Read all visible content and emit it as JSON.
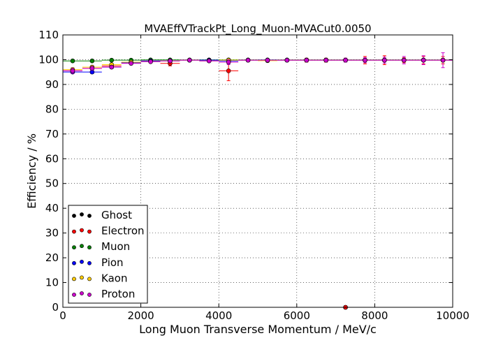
{
  "chart_data": {
    "type": "scatter",
    "title": "MVAEffVTrackPt_Long_Muon-MVACut0.0050",
    "xlabel": "Long Muon Transverse Momentum / MeV/c",
    "ylabel": "Efficiency / %",
    "xlim": [
      0,
      10000
    ],
    "ylim": [
      0,
      110
    ],
    "xticks": [
      0,
      2000,
      4000,
      6000,
      8000,
      10000
    ],
    "yticks": [
      0,
      10,
      20,
      30,
      40,
      50,
      60,
      70,
      80,
      90,
      100,
      110
    ],
    "grid": true,
    "legend_position": "lower-left",
    "bin_half_width": 250,
    "series": [
      {
        "name": "Ghost",
        "color": "#000000",
        "points": [
          {
            "x": 7250,
            "y": 0,
            "yerr": 0
          }
        ]
      },
      {
        "name": "Electron",
        "color": "#ff0000",
        "points": [
          {
            "x": 250,
            "y": 95.5,
            "yerr": 1.0
          },
          {
            "x": 750,
            "y": 96.5,
            "yerr": 1.0
          },
          {
            "x": 1250,
            "y": 97.5,
            "yerr": 0.8
          },
          {
            "x": 1750,
            "y": 98.8,
            "yerr": 0.6
          },
          {
            "x": 2250,
            "y": 99.5,
            "yerr": 0.5
          },
          {
            "x": 2750,
            "y": 98.5,
            "yerr": 1.0
          },
          {
            "x": 3250,
            "y": 99.8,
            "yerr": 0.4
          },
          {
            "x": 3750,
            "y": 99.8,
            "yerr": 0.4
          },
          {
            "x": 4250,
            "y": 95.5,
            "yerr": 4.0
          },
          {
            "x": 4750,
            "y": 99.8,
            "yerr": 0.5
          },
          {
            "x": 5250,
            "y": 99.8,
            "yerr": 0.5
          },
          {
            "x": 5750,
            "y": 99.8,
            "yerr": 0.5
          },
          {
            "x": 6250,
            "y": 99.8,
            "yerr": 0.8
          },
          {
            "x": 6750,
            "y": 99.8,
            "yerr": 0.8
          },
          {
            "x": 7250,
            "y": 99.8,
            "yerr": 0.8
          },
          {
            "x": 7750,
            "y": 99.8,
            "yerr": 1.5
          },
          {
            "x": 8250,
            "y": 99.8,
            "yerr": 1.8
          },
          {
            "x": 8750,
            "y": 99.8,
            "yerr": 1.0
          },
          {
            "x": 9250,
            "y": 99.8,
            "yerr": 1.5
          },
          {
            "x": 9750,
            "y": 99.8,
            "yerr": 1.5
          },
          {
            "x": 7250,
            "y": 0,
            "yerr": 0
          }
        ]
      },
      {
        "name": "Muon",
        "color": "#007f00",
        "points": [
          {
            "x": 250,
            "y": 99.5,
            "yerr": 0.3
          },
          {
            "x": 750,
            "y": 99.5,
            "yerr": 0.3
          },
          {
            "x": 1250,
            "y": 99.8,
            "yerr": 0.2
          },
          {
            "x": 1750,
            "y": 99.8,
            "yerr": 0.2
          },
          {
            "x": 2250,
            "y": 99.9,
            "yerr": 0.2
          },
          {
            "x": 2750,
            "y": 99.9,
            "yerr": 0.2
          },
          {
            "x": 3250,
            "y": 99.9,
            "yerr": 0.2
          },
          {
            "x": 3750,
            "y": 99.9,
            "yerr": 0.2
          },
          {
            "x": 4250,
            "y": 99.9,
            "yerr": 0.2
          },
          {
            "x": 4750,
            "y": 99.9,
            "yerr": 0.2
          },
          {
            "x": 5250,
            "y": 99.9,
            "yerr": 0.2
          },
          {
            "x": 5750,
            "y": 99.9,
            "yerr": 0.2
          },
          {
            "x": 6250,
            "y": 99.9,
            "yerr": 0.2
          },
          {
            "x": 6750,
            "y": 99.9,
            "yerr": 0.2
          },
          {
            "x": 7250,
            "y": 99.9,
            "yerr": 0.2
          },
          {
            "x": 7750,
            "y": 99.9,
            "yerr": 0.2
          },
          {
            "x": 8250,
            "y": 99.9,
            "yerr": 0.2
          },
          {
            "x": 8750,
            "y": 99.9,
            "yerr": 0.2
          },
          {
            "x": 9250,
            "y": 99.9,
            "yerr": 0.2
          },
          {
            "x": 9750,
            "y": 99.9,
            "yerr": 0.2
          }
        ]
      },
      {
        "name": "Pion",
        "color": "#0000ff",
        "points": [
          {
            "x": 250,
            "y": 95.0,
            "yerr": 0.6
          },
          {
            "x": 750,
            "y": 95.0,
            "yerr": 0.6
          },
          {
            "x": 1250,
            "y": 97.0,
            "yerr": 0.5
          },
          {
            "x": 1750,
            "y": 98.8,
            "yerr": 0.4
          },
          {
            "x": 2250,
            "y": 99.5,
            "yerr": 0.3
          },
          {
            "x": 2750,
            "y": 99.5,
            "yerr": 0.3
          },
          {
            "x": 3250,
            "y": 99.8,
            "yerr": 0.3
          },
          {
            "x": 3750,
            "y": 99.8,
            "yerr": 0.3
          },
          {
            "x": 4250,
            "y": 99.5,
            "yerr": 0.5
          },
          {
            "x": 4750,
            "y": 99.8,
            "yerr": 0.3
          },
          {
            "x": 5250,
            "y": 99.8,
            "yerr": 0.3
          },
          {
            "x": 5750,
            "y": 99.8,
            "yerr": 0.3
          },
          {
            "x": 6250,
            "y": 99.8,
            "yerr": 0.4
          },
          {
            "x": 6750,
            "y": 99.8,
            "yerr": 0.4
          },
          {
            "x": 7250,
            "y": 99.8,
            "yerr": 0.4
          },
          {
            "x": 7750,
            "y": 99.8,
            "yerr": 0.5
          },
          {
            "x": 8250,
            "y": 99.8,
            "yerr": 0.5
          },
          {
            "x": 8750,
            "y": 99.8,
            "yerr": 0.5
          },
          {
            "x": 9250,
            "y": 99.8,
            "yerr": 0.5
          },
          {
            "x": 9750,
            "y": 99.8,
            "yerr": 0.5
          }
        ]
      },
      {
        "name": "Kaon",
        "color": "#ffcc00",
        "points": [
          {
            "x": 250,
            "y": 96.0,
            "yerr": 0.8
          },
          {
            "x": 750,
            "y": 97.0,
            "yerr": 0.6
          },
          {
            "x": 1250,
            "y": 98.0,
            "yerr": 0.5
          },
          {
            "x": 1750,
            "y": 99.0,
            "yerr": 0.4
          },
          {
            "x": 2250,
            "y": 99.2,
            "yerr": 0.4
          },
          {
            "x": 2750,
            "y": 99.5,
            "yerr": 0.4
          },
          {
            "x": 3250,
            "y": 99.8,
            "yerr": 0.3
          },
          {
            "x": 3750,
            "y": 99.5,
            "yerr": 0.4
          },
          {
            "x": 4250,
            "y": 99.8,
            "yerr": 0.4
          },
          {
            "x": 4750,
            "y": 99.8,
            "yerr": 0.4
          },
          {
            "x": 5250,
            "y": 99.6,
            "yerr": 0.4
          },
          {
            "x": 5750,
            "y": 99.8,
            "yerr": 0.4
          },
          {
            "x": 6250,
            "y": 99.8,
            "yerr": 0.4
          },
          {
            "x": 6750,
            "y": 99.8,
            "yerr": 0.5
          },
          {
            "x": 7250,
            "y": 99.8,
            "yerr": 0.5
          },
          {
            "x": 7750,
            "y": 99.8,
            "yerr": 0.6
          },
          {
            "x": 8250,
            "y": 99.8,
            "yerr": 0.6
          },
          {
            "x": 8750,
            "y": 99.8,
            "yerr": 0.6
          },
          {
            "x": 9250,
            "y": 99.8,
            "yerr": 0.6
          },
          {
            "x": 9750,
            "y": 99.8,
            "yerr": 0.8
          }
        ]
      },
      {
        "name": "Proton",
        "color": "#cc00cc",
        "points": [
          {
            "x": 250,
            "y": 95.5,
            "yerr": 1.0
          },
          {
            "x": 750,
            "y": 96.5,
            "yerr": 0.8
          },
          {
            "x": 1250,
            "y": 97.0,
            "yerr": 0.6
          },
          {
            "x": 1750,
            "y": 98.5,
            "yerr": 0.5
          },
          {
            "x": 2250,
            "y": 99.2,
            "yerr": 0.5
          },
          {
            "x": 2750,
            "y": 99.5,
            "yerr": 0.5
          },
          {
            "x": 3250,
            "y": 99.8,
            "yerr": 0.4
          },
          {
            "x": 3750,
            "y": 99.5,
            "yerr": 0.5
          },
          {
            "x": 4250,
            "y": 99.0,
            "yerr": 1.0
          },
          {
            "x": 4750,
            "y": 99.8,
            "yerr": 0.5
          },
          {
            "x": 5250,
            "y": 99.8,
            "yerr": 0.5
          },
          {
            "x": 5750,
            "y": 99.8,
            "yerr": 0.5
          },
          {
            "x": 6250,
            "y": 99.8,
            "yerr": 0.6
          },
          {
            "x": 6750,
            "y": 99.8,
            "yerr": 0.6
          },
          {
            "x": 7250,
            "y": 99.8,
            "yerr": 0.8
          },
          {
            "x": 7750,
            "y": 99.8,
            "yerr": 1.0
          },
          {
            "x": 8250,
            "y": 99.8,
            "yerr": 1.2
          },
          {
            "x": 8750,
            "y": 99.8,
            "yerr": 1.5
          },
          {
            "x": 9250,
            "y": 99.8,
            "yerr": 1.8
          },
          {
            "x": 9750,
            "y": 99.8,
            "yerr": 3.0
          }
        ]
      }
    ]
  }
}
